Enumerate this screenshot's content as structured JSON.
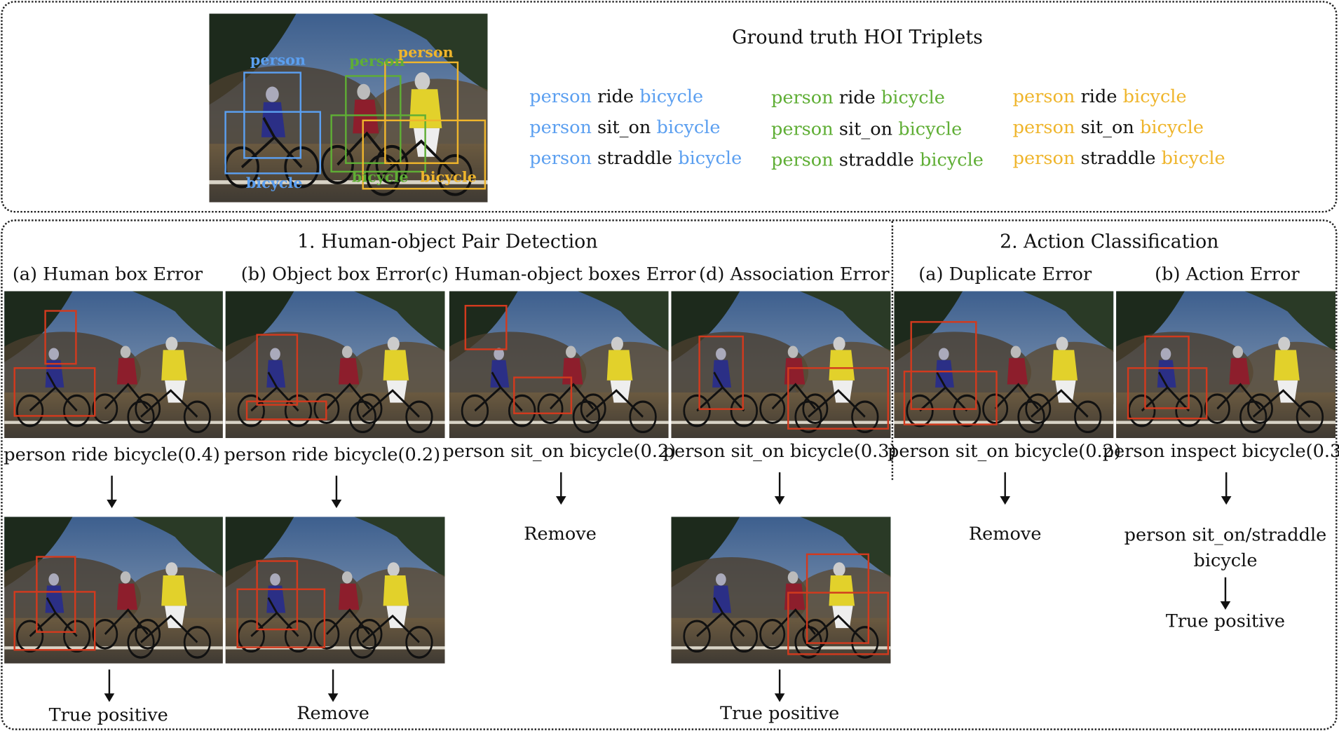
{
  "colors": {
    "blue": "#5b9ff0",
    "green": "#5fae35",
    "orange": "#efb52c",
    "red_box": "#d23a1e"
  },
  "ground_truth": {
    "title": "Ground truth HOI Triplets",
    "image_labels": {
      "blue_person": "person",
      "blue_bicycle": "bicycle",
      "green_person": "person",
      "green_bicycle": "bicycle",
      "orange_person": "person",
      "orange_bicycle": "bicycle"
    },
    "triplets": {
      "blue": [
        {
          "subject": "person",
          "verb": "ride",
          "object": "bicycle"
        },
        {
          "subject": "person",
          "verb": "sit_on",
          "object": "bicycle"
        },
        {
          "subject": "person",
          "verb": "straddle",
          "object": "bicycle"
        }
      ],
      "green": [
        {
          "subject": "person",
          "verb": "ride",
          "object": "bicycle"
        },
        {
          "subject": "person",
          "verb": "sit_on",
          "object": "bicycle"
        },
        {
          "subject": "person",
          "verb": "straddle",
          "object": "bicycle"
        }
      ],
      "orange": [
        {
          "subject": "person",
          "verb": "ride",
          "object": "bicycle"
        },
        {
          "subject": "person",
          "verb": "sit_on",
          "object": "bicycle"
        },
        {
          "subject": "person",
          "verb": "straddle",
          "object": "bicycle"
        }
      ]
    }
  },
  "section1": {
    "title": "1. Human-object Pair Detection",
    "columns": [
      {
        "heading": "(a) Human box Error",
        "prediction": "person ride bicycle(0.4)",
        "result": "True positive"
      },
      {
        "heading": "(b) Object box Error",
        "prediction": "person ride bicycle(0.2)",
        "result": "Remove"
      },
      {
        "heading": "(c) Human-object boxes Error",
        "prediction": "person sit_on bicycle(0.2)",
        "result": "Remove"
      },
      {
        "heading": "(d) Association Error",
        "prediction": "person sit_on bicycle(0.3)",
        "result": "True positive"
      }
    ]
  },
  "section2": {
    "title": "2. Action Classification",
    "columns": [
      {
        "heading": "(a) Duplicate Error",
        "prediction": "person sit_on bicycle(0.2)",
        "result": "Remove"
      },
      {
        "heading": "(b) Action Error",
        "prediction": "person inspect bicycle(0.3)",
        "corrected_line1": "person sit_on/straddle",
        "corrected_line2": "bicycle",
        "result": "True positive"
      }
    ]
  }
}
